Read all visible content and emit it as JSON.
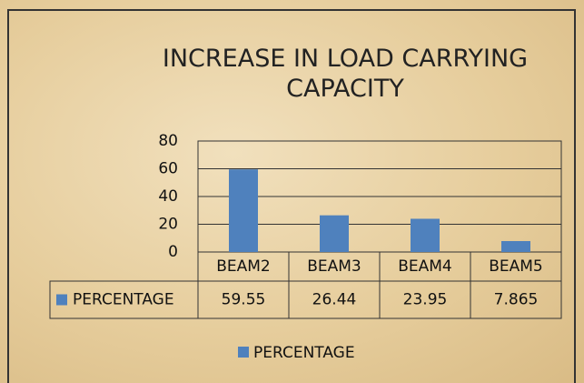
{
  "chart_data": {
    "type": "bar",
    "title": "INCREASE IN LOAD CARRYING CAPACITY",
    "categories": [
      "BEAM2",
      "BEAM3",
      "BEAM4",
      "BEAM5"
    ],
    "series": [
      {
        "name": "PERCENTAGE",
        "color": "#4f81bd",
        "values": [
          59.55,
          26.44,
          23.95,
          7.865
        ]
      }
    ],
    "ylim": [
      0,
      80
    ],
    "yticks": [
      0,
      20,
      40,
      60,
      80
    ],
    "grid": true,
    "legend": "bottom",
    "data_table": true
  }
}
